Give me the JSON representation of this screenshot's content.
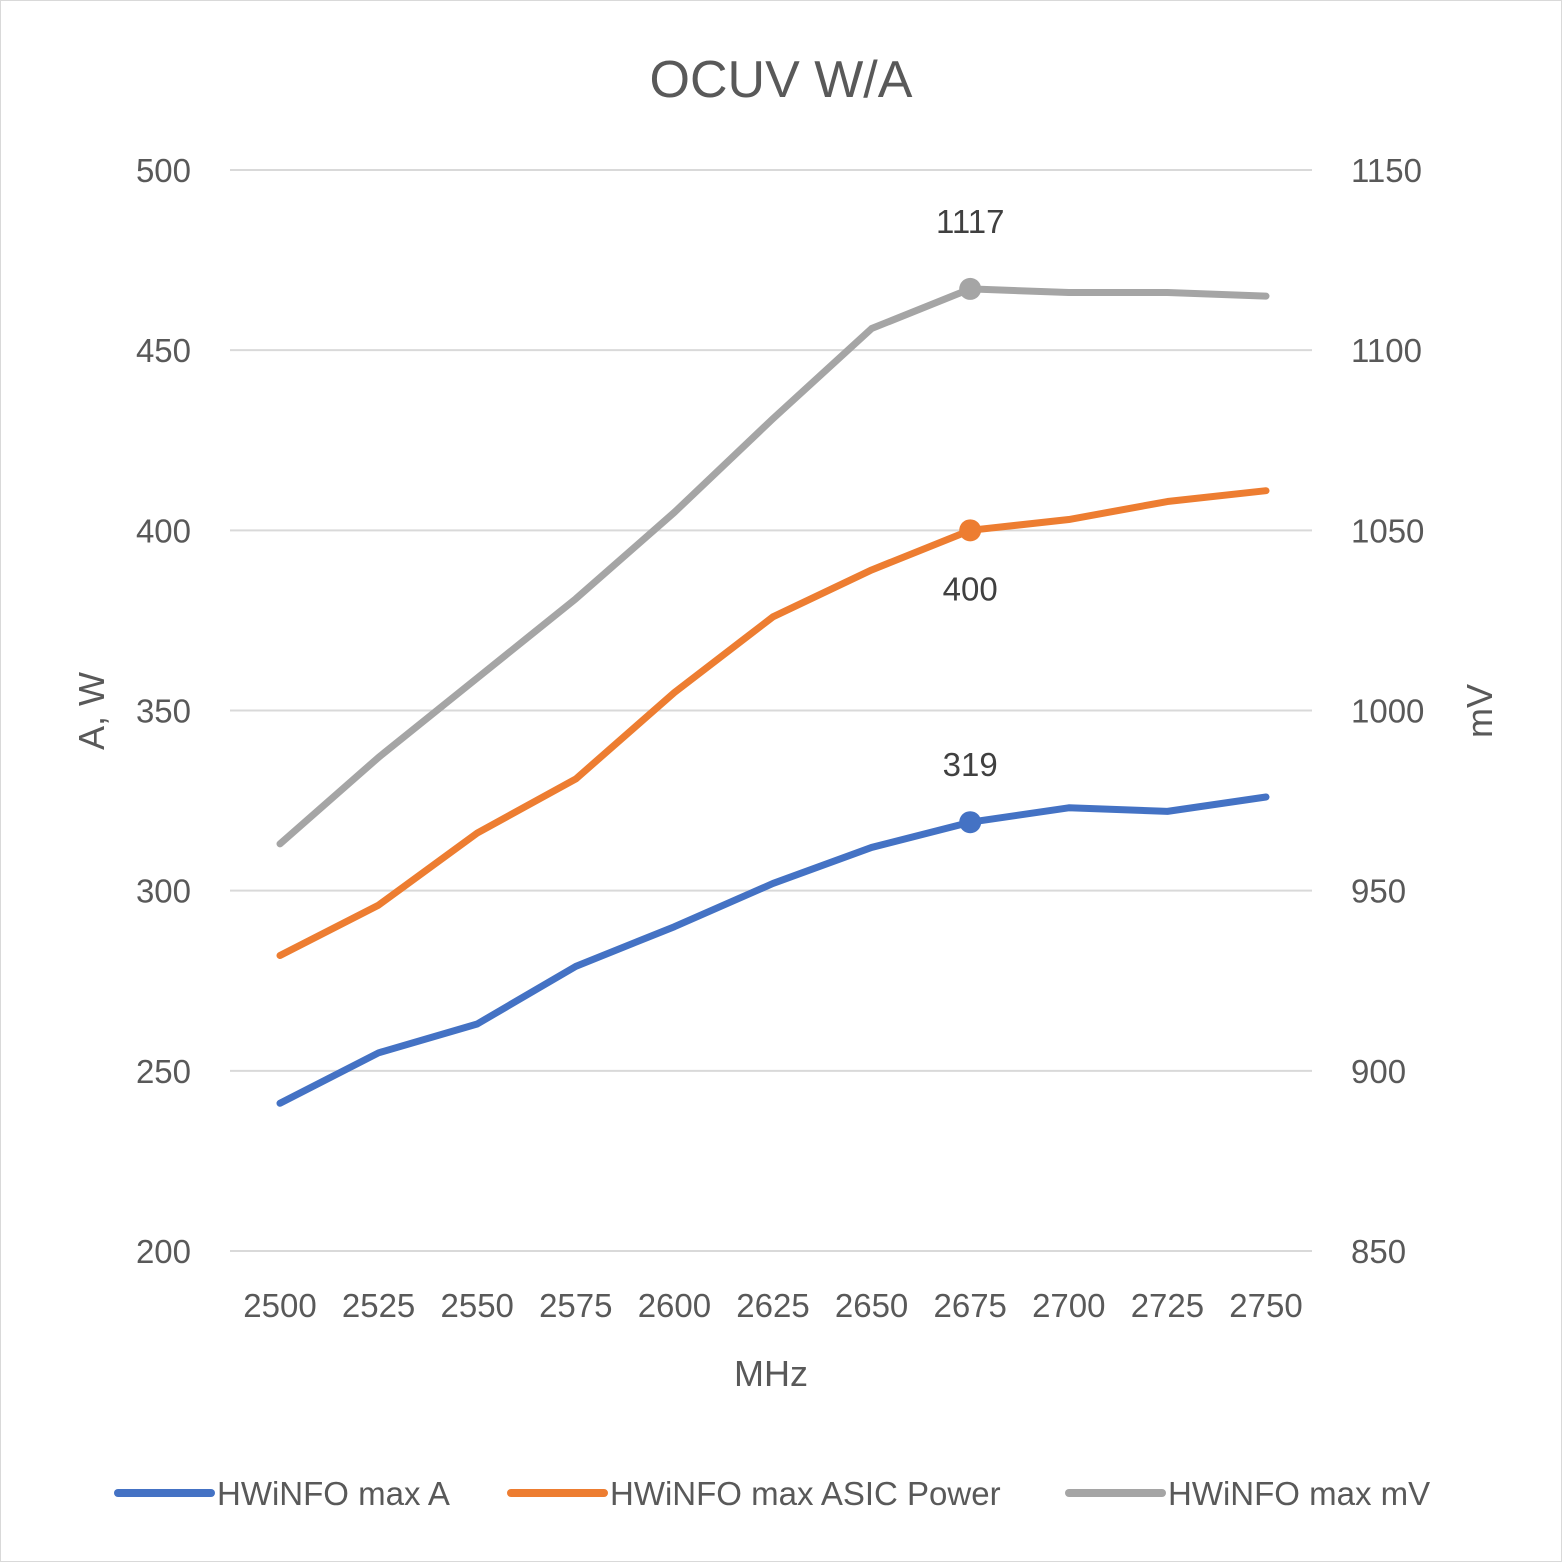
{
  "chart_data": {
    "type": "line",
    "title": "OCUV W/A",
    "xlabel": "MHz",
    "ylabel": "A, W",
    "y2label": "mV",
    "categories": [
      "2500",
      "2525",
      "2550",
      "2575",
      "2600",
      "2625",
      "2650",
      "2675",
      "2700",
      "2725",
      "2750"
    ],
    "ylim": [
      200,
      500
    ],
    "yticks": [
      200,
      250,
      300,
      350,
      400,
      450,
      500
    ],
    "y2lim": [
      850,
      1150
    ],
    "y2ticks": [
      850,
      900,
      950,
      1000,
      1050,
      1100,
      1150
    ],
    "grid": true,
    "legend": "bottom",
    "series": [
      {
        "name": "HWiNFO max A",
        "axis": "left",
        "color": "#4472C4",
        "values": [
          241,
          255,
          263,
          279,
          290,
          302,
          312,
          319,
          323,
          322,
          326
        ],
        "marker_index": 7,
        "label": "319"
      },
      {
        "name": "HWiNFO max ASIC Power",
        "axis": "left",
        "color": "#ED7D31",
        "values": [
          282,
          296,
          316,
          331,
          355,
          376,
          389,
          400,
          403,
          408,
          411
        ],
        "marker_index": 7,
        "label": "400"
      },
      {
        "name": "HWiNFO max mV",
        "axis": "right",
        "color": "#A5A5A5",
        "values": [
          963,
          987,
          1009,
          1031,
          1055,
          1081,
          1106,
          1117,
          1116,
          1116,
          1115
        ],
        "marker_index": 7,
        "label": "1117"
      }
    ]
  }
}
